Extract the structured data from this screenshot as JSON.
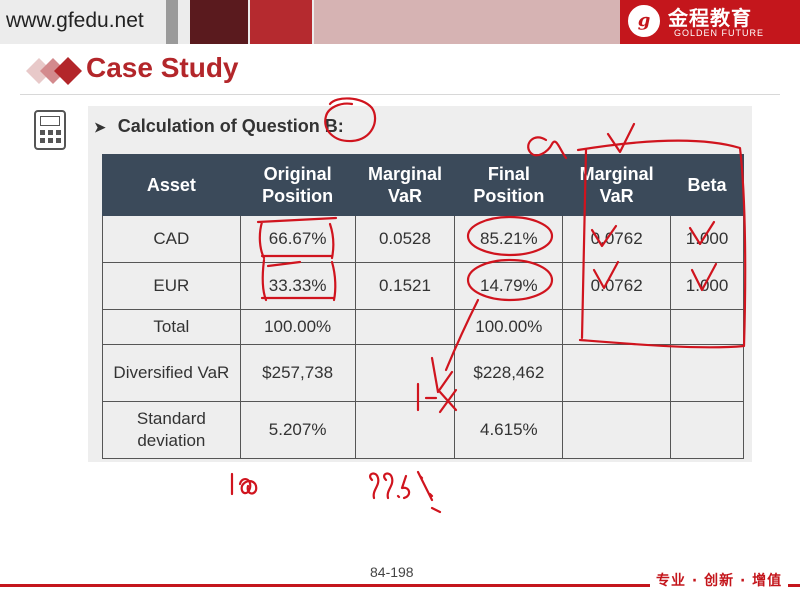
{
  "header": {
    "url": "www.gfedu.net",
    "logo_cn": "金程教育",
    "logo_en": "GOLDEN FUTURE",
    "logo_mark": "g"
  },
  "slide": {
    "title": "Case Study",
    "subheading": "Calculation of Question B:",
    "table": {
      "columns": [
        "Asset",
        "Original Position",
        "Marginal VaR",
        "Final Position",
        "Marginal VaR",
        "Beta"
      ],
      "rows": [
        [
          "CAD",
          "66.67%",
          "0.0528",
          "85.21%",
          "0.0762",
          "1.000"
        ],
        [
          "EUR",
          "33.33%",
          "0.1521",
          "14.79%",
          "0.0762",
          "1.000"
        ],
        [
          "Total",
          "100.00%",
          "",
          "100.00%",
          "",
          ""
        ],
        [
          "Diversified VaR",
          "$257,738",
          "",
          "$228,462",
          "",
          ""
        ],
        [
          "Standard deviation",
          "5.207%",
          "",
          "4.615%",
          "",
          ""
        ]
      ]
    },
    "page_number": "84-198"
  },
  "footer": {
    "slogan": "专业 · 创新 · 增值"
  },
  "annotations": {
    "handwriting": [
      "α",
      "1-x",
      "1∞",
      "99.5%"
    ]
  },
  "colors": {
    "brand_red": "#c4161c",
    "title_red": "#b3262a",
    "table_header": "#3b4a5a",
    "ink": "#d0141e"
  }
}
